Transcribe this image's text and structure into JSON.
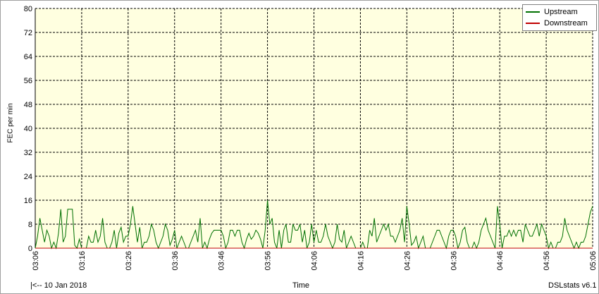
{
  "chart_data": {
    "type": "line",
    "title": "",
    "xlabel": "Time",
    "ylabel": "FEC per min",
    "ylim": [
      0,
      80
    ],
    "yticks": [
      0,
      8,
      16,
      24,
      32,
      40,
      48,
      56,
      64,
      72,
      80
    ],
    "xticks": [
      "03:06",
      "03:16",
      "03:26",
      "03:36",
      "03:46",
      "03:56",
      "04:06",
      "04:16",
      "04:26",
      "04:36",
      "04:46",
      "04:56",
      "05:06"
    ],
    "x_unit": "minutes since 03:06",
    "x_range": [
      0,
      120
    ],
    "grid": true,
    "legend_position": "top-right",
    "series": [
      {
        "name": "Upstream",
        "color": "#007000",
        "points": [
          [
            0,
            0
          ],
          [
            0.5,
            4
          ],
          [
            1,
            10
          ],
          [
            1.5,
            6
          ],
          [
            2,
            2
          ],
          [
            2.5,
            6
          ],
          [
            3,
            4
          ],
          [
            3.5,
            0
          ],
          [
            4,
            2
          ],
          [
            4.5,
            0
          ],
          [
            5,
            5
          ],
          [
            5.5,
            13
          ],
          [
            6,
            2
          ],
          [
            6.5,
            4
          ],
          [
            7,
            13
          ],
          [
            7.5,
            13
          ],
          [
            8,
            13
          ],
          [
            8.5,
            1
          ],
          [
            9,
            0
          ],
          [
            9.5,
            3
          ],
          [
            10,
            0
          ],
          [
            10.5,
            0
          ],
          [
            11,
            0
          ],
          [
            11.5,
            4
          ],
          [
            12,
            2
          ],
          [
            12.5,
            2
          ],
          [
            13,
            6
          ],
          [
            13.5,
            2
          ],
          [
            14,
            4
          ],
          [
            14.5,
            10
          ],
          [
            15,
            2
          ],
          [
            15.5,
            0
          ],
          [
            16,
            0
          ],
          [
            16.5,
            2
          ],
          [
            17,
            6
          ],
          [
            17.5,
            0
          ],
          [
            18,
            5
          ],
          [
            18.5,
            7
          ],
          [
            19,
            2
          ],
          [
            19.5,
            4
          ],
          [
            20,
            4
          ],
          [
            20.5,
            8
          ],
          [
            21,
            14
          ],
          [
            21.5,
            8
          ],
          [
            22,
            2
          ],
          [
            22.5,
            7
          ],
          [
            23,
            0
          ],
          [
            23.5,
            2
          ],
          [
            24,
            2
          ],
          [
            24.5,
            4
          ],
          [
            25,
            8
          ],
          [
            25.5,
            6
          ],
          [
            26,
            2
          ],
          [
            26.5,
            0
          ],
          [
            27,
            2
          ],
          [
            27.5,
            4
          ],
          [
            28,
            8
          ],
          [
            28.5,
            6
          ],
          [
            29,
            1
          ],
          [
            29.5,
            3
          ],
          [
            30,
            6
          ],
          [
            30.5,
            0
          ],
          [
            31,
            2
          ],
          [
            31.5,
            4
          ],
          [
            32,
            2
          ],
          [
            32.5,
            0
          ],
          [
            33,
            0
          ],
          [
            33.5,
            2
          ],
          [
            34,
            4
          ],
          [
            34.5,
            6
          ],
          [
            35,
            2
          ],
          [
            35.5,
            10
          ],
          [
            36,
            0
          ],
          [
            36.5,
            2
          ],
          [
            37,
            0
          ],
          [
            37.5,
            3
          ],
          [
            38,
            5
          ],
          [
            38.5,
            6
          ],
          [
            39,
            6
          ],
          [
            39.5,
            6
          ],
          [
            40,
            6
          ],
          [
            40.5,
            4
          ],
          [
            41,
            0
          ],
          [
            41.5,
            2
          ],
          [
            42,
            6
          ],
          [
            42.5,
            6
          ],
          [
            43,
            4
          ],
          [
            43.5,
            6
          ],
          [
            44,
            6
          ],
          [
            44.5,
            2
          ],
          [
            45,
            0
          ],
          [
            45.5,
            3
          ],
          [
            46,
            5
          ],
          [
            46.5,
            3
          ],
          [
            47,
            4
          ],
          [
            47.5,
            6
          ],
          [
            48,
            5
          ],
          [
            48.5,
            3
          ],
          [
            49,
            0
          ],
          [
            49.5,
            6
          ],
          [
            50,
            16
          ],
          [
            50.5,
            8
          ],
          [
            51,
            10
          ],
          [
            51.5,
            2
          ],
          [
            52,
            0
          ],
          [
            52.5,
            6
          ],
          [
            53,
            0
          ],
          [
            53.5,
            6
          ],
          [
            54,
            8
          ],
          [
            54.5,
            2
          ],
          [
            55,
            2
          ],
          [
            55.5,
            8
          ],
          [
            56,
            6
          ],
          [
            56.5,
            6
          ],
          [
            57,
            8
          ],
          [
            57.5,
            2
          ],
          [
            58,
            6
          ],
          [
            58.5,
            0
          ],
          [
            59,
            2
          ],
          [
            59.5,
            8
          ],
          [
            60,
            2
          ],
          [
            60.5,
            6
          ],
          [
            61,
            2
          ],
          [
            61.5,
            2
          ],
          [
            62,
            4
          ],
          [
            62.5,
            8
          ],
          [
            63,
            4
          ],
          [
            63.5,
            2
          ],
          [
            64,
            0
          ],
          [
            64.5,
            2
          ],
          [
            65,
            8
          ],
          [
            65.5,
            3
          ],
          [
            66,
            2
          ],
          [
            66.5,
            6
          ],
          [
            67,
            0
          ],
          [
            67.5,
            2
          ],
          [
            68,
            4
          ],
          [
            68.5,
            2
          ],
          [
            69,
            0
          ],
          [
            69.5,
            0
          ],
          [
            70,
            0
          ],
          [
            70.5,
            2
          ],
          [
            71,
            0
          ],
          [
            71.5,
            0
          ],
          [
            72,
            6
          ],
          [
            72.5,
            4
          ],
          [
            73,
            10
          ],
          [
            73.5,
            2
          ],
          [
            74,
            4
          ],
          [
            74.5,
            6
          ],
          [
            75,
            8
          ],
          [
            75.5,
            6
          ],
          [
            76,
            8
          ],
          [
            76.5,
            4
          ],
          [
            77,
            4
          ],
          [
            77.5,
            2
          ],
          [
            78,
            4
          ],
          [
            78.5,
            6
          ],
          [
            79,
            10
          ],
          [
            79.5,
            2
          ],
          [
            80,
            14
          ],
          [
            80.5,
            8
          ],
          [
            81,
            1
          ],
          [
            81.5,
            2
          ],
          [
            82,
            4
          ],
          [
            82.5,
            0
          ],
          [
            83,
            2
          ],
          [
            83.5,
            4
          ],
          [
            84,
            0
          ],
          [
            84.5,
            0
          ],
          [
            85,
            0
          ],
          [
            85.5,
            2
          ],
          [
            86,
            4
          ],
          [
            86.5,
            6
          ],
          [
            87,
            6
          ],
          [
            87.5,
            4
          ],
          [
            88,
            2
          ],
          [
            88.5,
            0
          ],
          [
            89,
            4
          ],
          [
            89.5,
            6
          ],
          [
            90,
            6
          ],
          [
            90.5,
            4
          ],
          [
            91,
            0
          ],
          [
            91.5,
            2
          ],
          [
            92,
            6
          ],
          [
            92.5,
            7
          ],
          [
            93,
            2
          ],
          [
            93.5,
            0
          ],
          [
            94,
            0
          ],
          [
            94.5,
            2
          ],
          [
            95,
            0
          ],
          [
            95.5,
            2
          ],
          [
            96,
            6
          ],
          [
            96.5,
            8
          ],
          [
            97,
            10
          ],
          [
            97.5,
            6
          ],
          [
            98,
            4
          ],
          [
            98.5,
            2
          ],
          [
            99,
            0
          ],
          [
            99.5,
            14
          ],
          [
            100,
            8
          ],
          [
            100.5,
            0
          ],
          [
            101,
            4
          ],
          [
            101.5,
            4
          ],
          [
            102,
            6
          ],
          [
            102.5,
            4
          ],
          [
            103,
            6
          ],
          [
            103.5,
            4
          ],
          [
            104,
            6
          ],
          [
            104.5,
            6
          ],
          [
            105,
            2
          ],
          [
            105.5,
            8
          ],
          [
            106,
            6
          ],
          [
            106.5,
            4
          ],
          [
            107,
            4
          ],
          [
            107.5,
            6
          ],
          [
            108,
            8
          ],
          [
            108.5,
            4
          ],
          [
            109,
            8
          ],
          [
            109.5,
            6
          ],
          [
            110,
            4
          ],
          [
            110.5,
            0
          ],
          [
            111,
            2
          ],
          [
            111.5,
            0
          ],
          [
            112,
            0
          ],
          [
            112.5,
            2
          ],
          [
            113,
            2
          ],
          [
            113.5,
            4
          ],
          [
            114,
            10
          ],
          [
            114.5,
            6
          ],
          [
            115,
            4
          ],
          [
            115.5,
            2
          ],
          [
            116,
            0
          ],
          [
            116.5,
            2
          ],
          [
            117,
            0
          ],
          [
            117.5,
            2
          ],
          [
            118,
            2
          ],
          [
            118.5,
            4
          ],
          [
            119,
            8
          ],
          [
            119.5,
            12
          ],
          [
            120,
            14
          ]
        ]
      },
      {
        "name": "Downstream",
        "color": "#c00000",
        "points": [
          [
            0,
            0
          ],
          [
            120,
            0
          ]
        ]
      }
    ]
  },
  "footer": {
    "left": "|<-- 10 Jan 2018",
    "center": "Time",
    "right": "DSLstats v6.1"
  }
}
